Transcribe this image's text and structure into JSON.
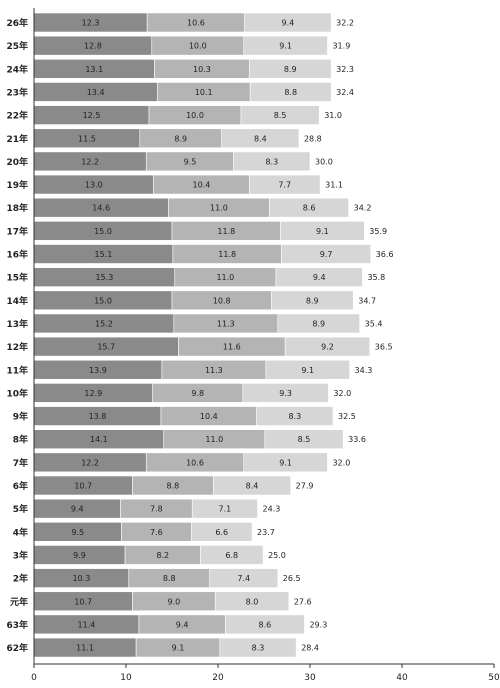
{
  "colors": {
    "seg1": "#8a8a8a",
    "seg2": "#b4b4b4",
    "seg3": "#d6d6d6",
    "axis": "#333333"
  },
  "chart_data": {
    "type": "bar",
    "orientation": "horizontal",
    "stacked": true,
    "categories": [
      "26年",
      "25年",
      "24年",
      "23年",
      "22年",
      "21年",
      "20年",
      "19年",
      "18年",
      "17年",
      "16年",
      "15年",
      "14年",
      "13年",
      "12年",
      "11年",
      "10年",
      "9年",
      "8年",
      "7年",
      "6年",
      "5年",
      "4年",
      "3年",
      "2年",
      "元年",
      "63年",
      "62年"
    ],
    "series": [
      {
        "values": [
          12.3,
          12.8,
          13.1,
          13.4,
          12.5,
          11.5,
          12.2,
          13.0,
          14.6,
          15.0,
          15.1,
          15.3,
          15.0,
          15.2,
          15.7,
          13.9,
          12.9,
          13.8,
          14.1,
          12.2,
          10.7,
          9.4,
          9.5,
          9.9,
          10.3,
          10.7,
          11.4,
          11.1
        ]
      },
      {
        "values": [
          10.6,
          10.0,
          10.3,
          10.1,
          10.0,
          8.9,
          9.5,
          10.4,
          11.0,
          11.8,
          11.8,
          11.0,
          10.8,
          11.3,
          11.6,
          11.3,
          9.8,
          10.4,
          11.0,
          10.6,
          8.8,
          7.8,
          7.6,
          8.2,
          8.8,
          9.0,
          9.4,
          9.1
        ]
      },
      {
        "values": [
          9.4,
          9.1,
          8.9,
          8.8,
          8.5,
          8.4,
          8.3,
          7.7,
          8.6,
          9.1,
          9.7,
          9.4,
          8.9,
          8.9,
          9.2,
          9.1,
          9.3,
          8.3,
          8.5,
          9.1,
          8.4,
          7.1,
          6.6,
          6.8,
          7.4,
          8.0,
          8.6,
          8.3
        ]
      }
    ],
    "totals": [
      "32.2",
      "31.9",
      "32.3",
      "32.4",
      "31.0",
      "28.8",
      "30.0",
      "31.1",
      "34.2",
      "35.9",
      "36.6",
      "35.8",
      "34.7",
      "35.4",
      "36.5",
      "34.3",
      "32.0",
      "32.5",
      "33.6",
      "32.0",
      "27.9",
      "24.3",
      "23.7",
      "25.0",
      "26.5",
      "27.6",
      "29.3",
      "28.4"
    ],
    "xlim": [
      0,
      50
    ],
    "xticks": [
      0,
      10,
      20,
      30,
      40,
      50
    ],
    "grid": false
  }
}
